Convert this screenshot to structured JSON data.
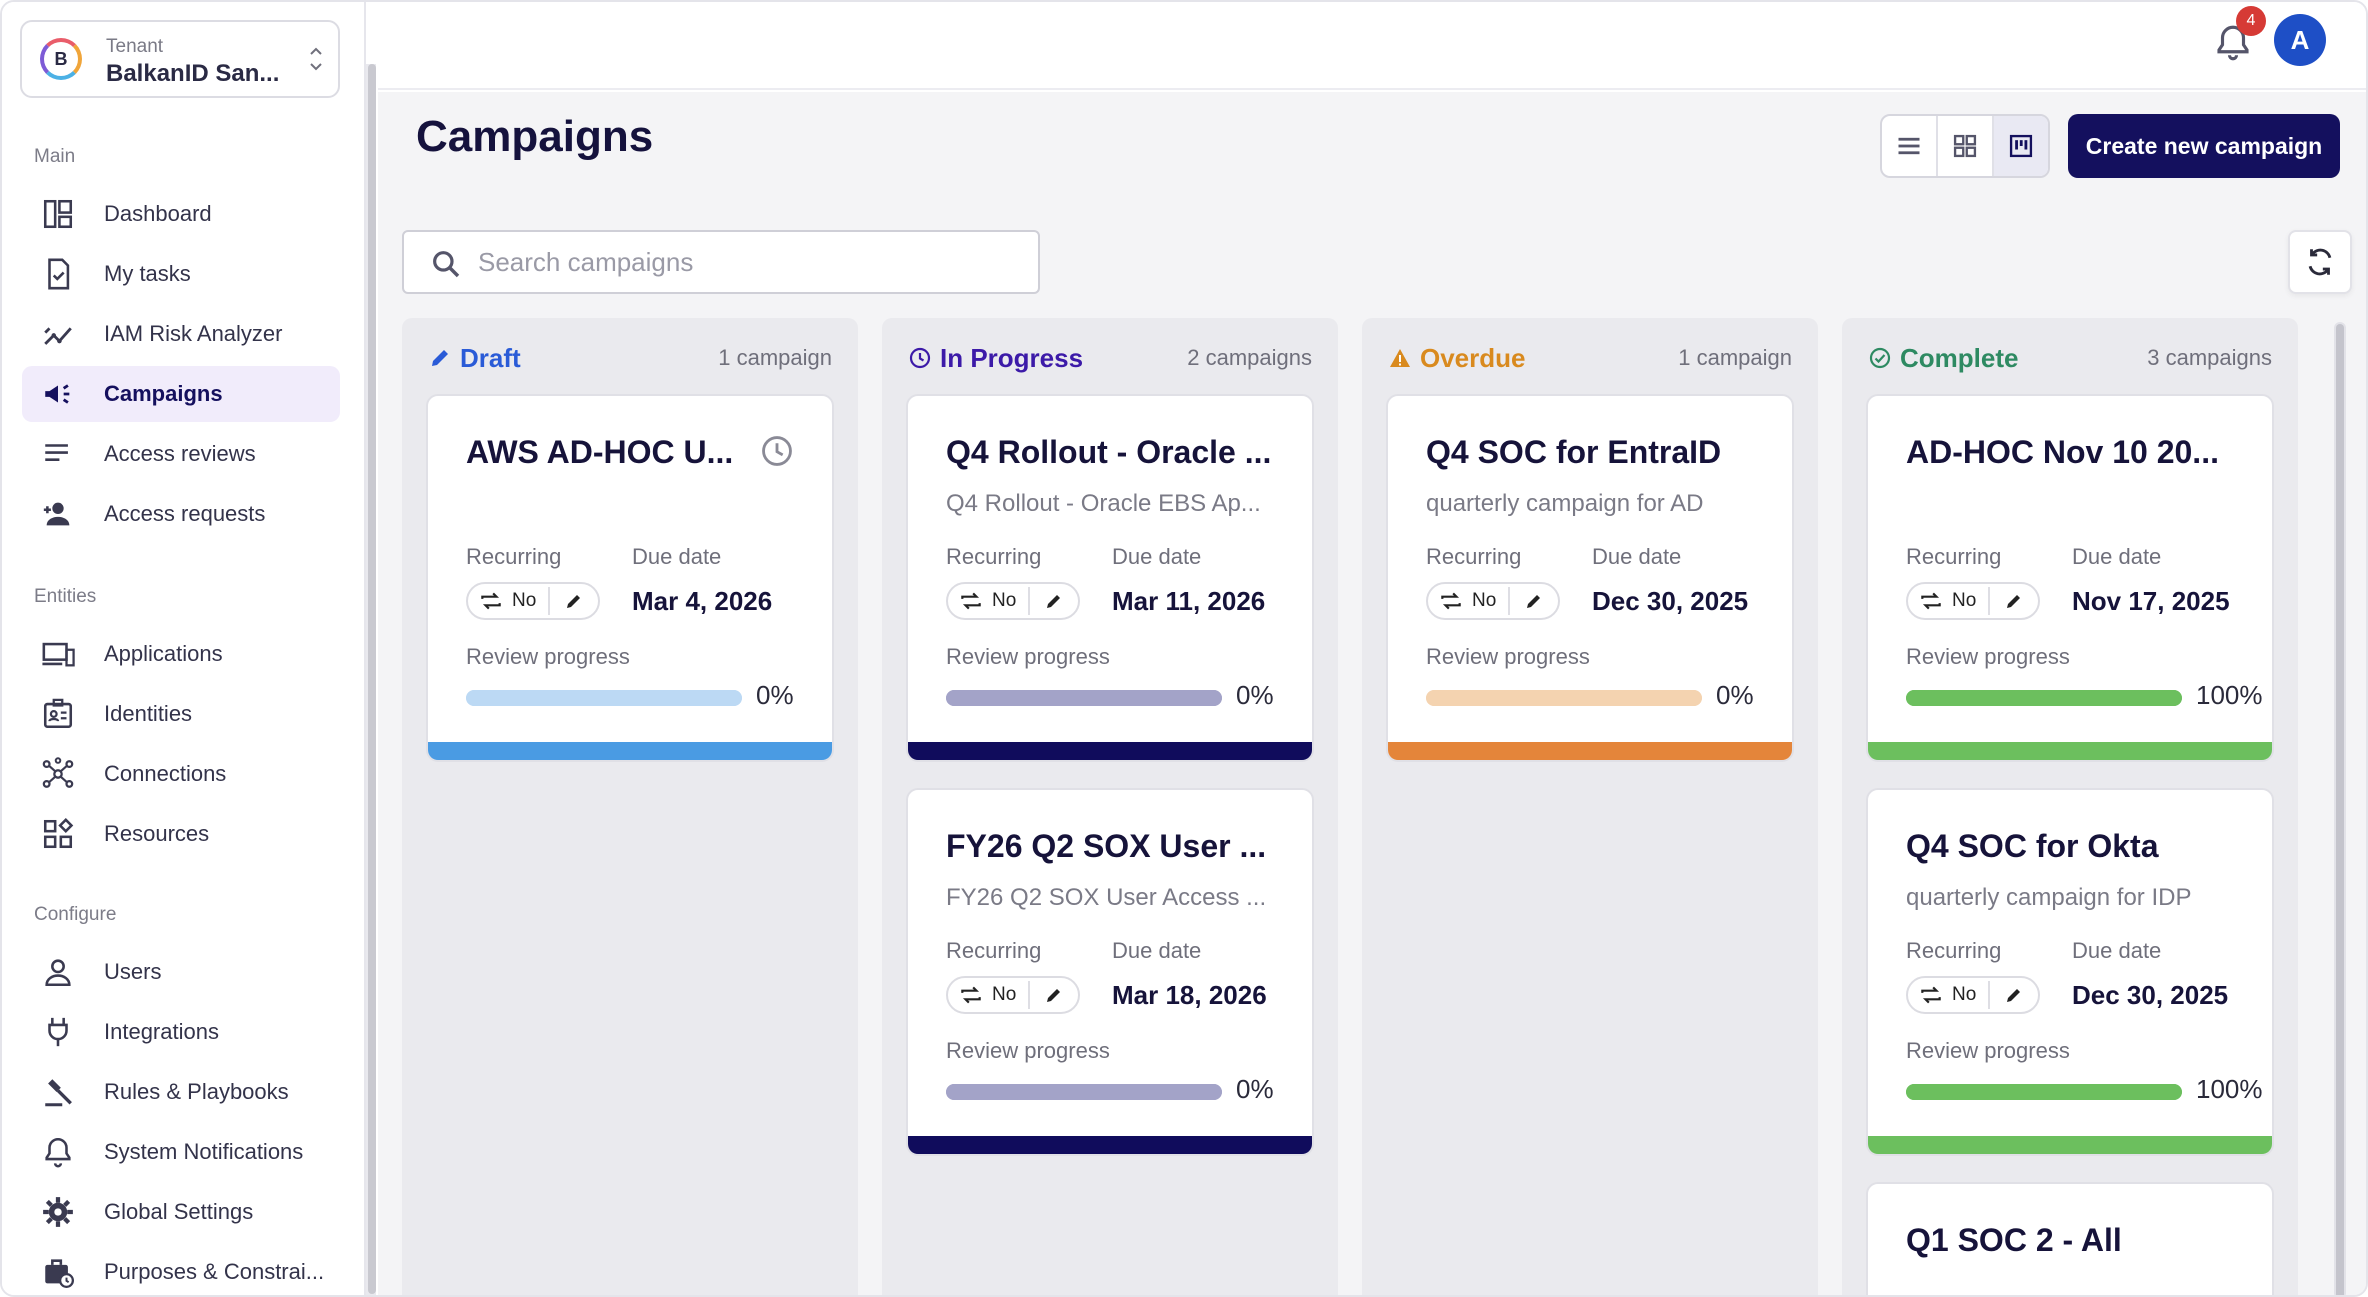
{
  "tenant": {
    "label": "Tenant",
    "name": "BalkanID San...",
    "logo_letter": "B"
  },
  "sidebar": {
    "sections": [
      {
        "label": "Main",
        "items": [
          {
            "label": "Dashboard",
            "icon": "dashboard-icon"
          },
          {
            "label": "My tasks",
            "icon": "task-check-icon"
          },
          {
            "label": "IAM Risk Analyzer",
            "icon": "risk-trend-icon"
          },
          {
            "label": "Campaigns",
            "icon": "megaphone-icon",
            "active": true
          },
          {
            "label": "Access reviews",
            "icon": "list-review-icon"
          },
          {
            "label": "Access requests",
            "icon": "person-add-icon"
          }
        ]
      },
      {
        "label": "Entities",
        "items": [
          {
            "label": "Applications",
            "icon": "devices-icon"
          },
          {
            "label": "Identities",
            "icon": "id-badge-icon"
          },
          {
            "label": "Connections",
            "icon": "network-icon"
          },
          {
            "label": "Resources",
            "icon": "widgets-icon"
          }
        ]
      },
      {
        "label": "Configure",
        "items": [
          {
            "label": "Users",
            "icon": "user-icon"
          },
          {
            "label": "Integrations",
            "icon": "plug-icon"
          },
          {
            "label": "Rules & Playbooks",
            "icon": "gavel-icon"
          },
          {
            "label": "System Notifications",
            "icon": "bell-icon"
          },
          {
            "label": "Global Settings",
            "icon": "gear-icon"
          },
          {
            "label": "Purposes & Constrai...",
            "icon": "briefcase-icon"
          }
        ]
      }
    ]
  },
  "topbar": {
    "notification_count": "4",
    "avatar_letter": "A"
  },
  "page": {
    "title": "Campaigns",
    "create_label": "Create new campaign",
    "search_placeholder": "Search campaigns",
    "view_modes": [
      "list",
      "grid",
      "board"
    ],
    "active_view": "board"
  },
  "labels": {
    "recurring": "Recurring",
    "due": "Due date",
    "progress": "Review progress"
  },
  "columns": [
    {
      "title": "Draft",
      "count": "1 campaign",
      "color": "#2a5bd7",
      "icon": "pencil-icon",
      "cards": [
        {
          "title": "AWS AD-HOC U...",
          "description": "",
          "recurring": "No",
          "due": "Mar 4, 2026",
          "progress": 0,
          "progress_label": "0%",
          "track": "#bcd9f4",
          "fill": "#bcd9f4",
          "accent": "#4a9be3",
          "clock": true
        }
      ]
    },
    {
      "title": "In Progress",
      "count": "2 campaigns",
      "color": "#3c1aa8",
      "icon": "clock-icon",
      "cards": [
        {
          "title": "Q4 Rollout - Oracle ...",
          "description": "Q4 Rollout - Oracle EBS Ap...",
          "recurring": "No",
          "due": "Mar 11, 2026",
          "progress": 0,
          "progress_label": "0%",
          "track": "#a3a3c8",
          "fill": "#a3a3c8",
          "accent": "#100c5c"
        },
        {
          "title": "FY26 Q2 SOX User ...",
          "description": "FY26 Q2 SOX User Access ...",
          "recurring": "No",
          "due": "Mar 18, 2026",
          "progress": 0,
          "progress_label": "0%",
          "track": "#a3a3c8",
          "fill": "#a3a3c8",
          "accent": "#100c5c"
        }
      ]
    },
    {
      "title": "Overdue",
      "count": "1 campaign",
      "color": "#d98a1e",
      "icon": "warning-icon",
      "cards": [
        {
          "title": "Q4 SOC for EntraID",
          "description": "quarterly campaign for AD",
          "recurring": "No",
          "due": "Dec 30, 2025",
          "progress": 0,
          "progress_label": "0%",
          "track": "#f4d3b0",
          "fill": "#f4d3b0",
          "accent": "#e4853a"
        }
      ]
    },
    {
      "title": "Complete",
      "count": "3 campaigns",
      "color": "#2e8a62",
      "icon": "check-circle-icon",
      "cards": [
        {
          "title": "AD-HOC Nov 10 20...",
          "description": "",
          "recurring": "No",
          "due": "Nov 17, 2025",
          "progress": 100,
          "progress_label": "100%",
          "track": "#6cbf5e",
          "fill": "#6cbf5e",
          "accent": "#6cbf5e"
        },
        {
          "title": "Q4 SOC for Okta",
          "description": "quarterly campaign for IDP",
          "recurring": "No",
          "due": "Dec 30, 2025",
          "progress": 100,
          "progress_label": "100%",
          "track": "#6cbf5e",
          "fill": "#6cbf5e",
          "accent": "#6cbf5e"
        },
        {
          "title": "Q1 SOC 2 - All",
          "description": "",
          "partial": true
        }
      ]
    }
  ]
}
